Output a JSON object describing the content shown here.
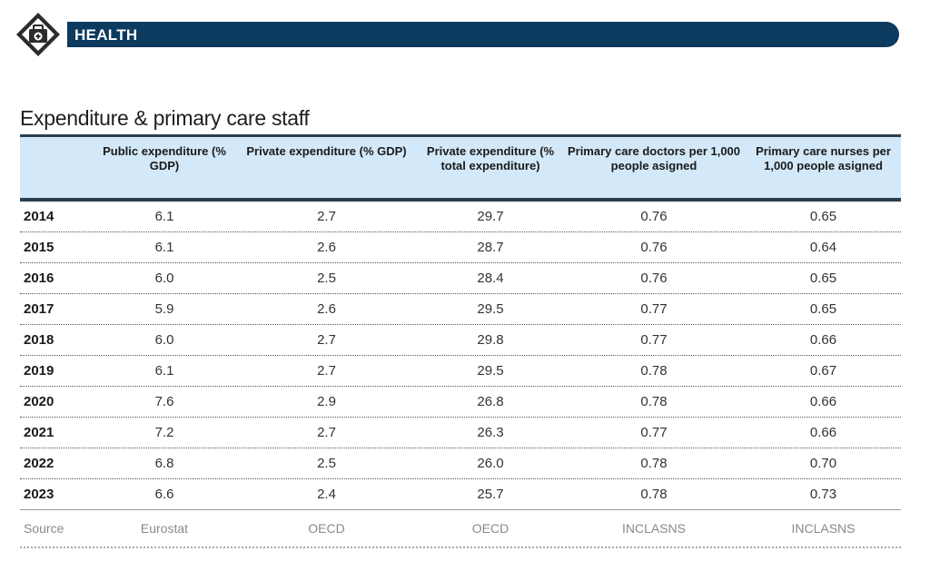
{
  "banner": {
    "title": "HEALTH",
    "icon": "first-aid-kit-icon",
    "color": "#0d3a5f"
  },
  "section_title": "Expenditure & primary care staff",
  "table": {
    "columns": [
      "",
      "Public expenditure (% GDP)",
      "Private expenditure (% GDP)",
      "Private expenditure (% total expenditure)",
      "Primary care doctors per 1,000 people asigned",
      "Primary care nurses per 1,000 people asigned"
    ],
    "rows": [
      [
        "2014",
        "6.1",
        "2.7",
        "29.7",
        "0.76",
        "0.65"
      ],
      [
        "2015",
        "6.1",
        "2.6",
        "28.7",
        "0.76",
        "0.64"
      ],
      [
        "2016",
        "6.0",
        "2.5",
        "28.4",
        "0.76",
        "0.65"
      ],
      [
        "2017",
        "5.9",
        "2.6",
        "29.5",
        "0.77",
        "0.65"
      ],
      [
        "2018",
        "6.0",
        "2.7",
        "29.8",
        "0.77",
        "0.66"
      ],
      [
        "2019",
        "6.1",
        "2.7",
        "29.5",
        "0.78",
        "0.67"
      ],
      [
        "2020",
        "7.6",
        "2.9",
        "26.8",
        "0.78",
        "0.66"
      ],
      [
        "2021",
        "7.2",
        "2.7",
        "26.3",
        "0.77",
        "0.66"
      ],
      [
        "2022",
        "6.8",
        "2.5",
        "26.0",
        "0.78",
        "0.70"
      ],
      [
        "2023",
        "6.6",
        "2.4",
        "25.7",
        "0.78",
        "0.73"
      ]
    ],
    "source": [
      "Source",
      "Eurostat",
      "OECD",
      "OECD",
      "INCLASNS",
      "INCLASNS"
    ]
  }
}
